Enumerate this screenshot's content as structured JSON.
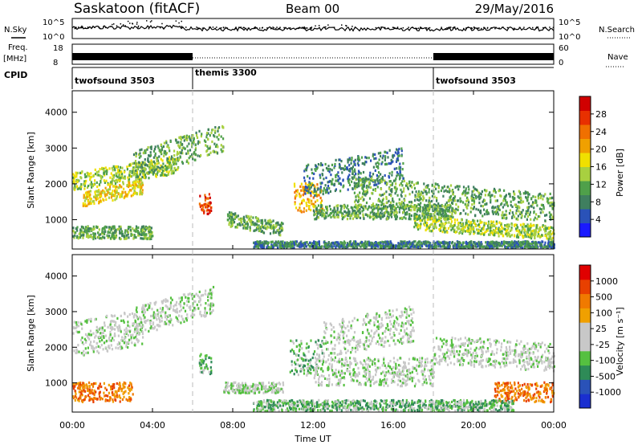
{
  "header": {
    "station": "Saskatoon (fitACF)",
    "beam": "Beam 00",
    "date": "29/May/2016"
  },
  "panels": {
    "nsky": {
      "label": "N.Sky",
      "ticks": [
        "10^5",
        "10^0"
      ],
      "right_label": "N.Search",
      "right_ticks": [
        "10^5",
        "10^0"
      ]
    },
    "freq": {
      "label_top": "Freq.",
      "label_unit": "[MHz]",
      "ticks": [
        "18",
        "8"
      ],
      "right_label": "Nave",
      "right_ticks": [
        "60",
        "0"
      ]
    },
    "cpid": {
      "label": "CPID",
      "modes": [
        {
          "name": "twofsound 3503",
          "start": 0,
          "end": 6
        },
        {
          "name": "themis 3300",
          "start": 6,
          "end": 18
        },
        {
          "name": "twofsound 3503",
          "start": 18,
          "end": 24
        }
      ]
    }
  },
  "x_axis": {
    "title": "Time UT",
    "ticks": [
      "00:00",
      "04:00",
      "08:00",
      "12:00",
      "16:00",
      "20:00",
      "00:00"
    ]
  },
  "colorbars": {
    "power": {
      "label": "Power [dB]",
      "ticks": [
        "28",
        "24",
        "20",
        "16",
        "12",
        "8",
        "4"
      ],
      "colors": [
        "#1a1aff",
        "#2a52b8",
        "#3f7f5f",
        "#4fa04a",
        "#a8d040",
        "#f0e000",
        "#f0a000",
        "#f07000",
        "#e83000",
        "#d00000"
      ]
    },
    "velocity": {
      "label": "Velocity [m s⁻¹]",
      "ticks": [
        "1000",
        "500",
        "100",
        "25",
        "-25",
        "-100",
        "-500",
        "-1000"
      ],
      "colors": [
        "#1a2fd0",
        "#2a52b8",
        "#2e8b57",
        "#55c040",
        "#c8c8c8",
        "#c8c8c8",
        "#f0a000",
        "#f07a00",
        "#e84000",
        "#e00000"
      ]
    }
  },
  "chart_data": [
    {
      "type": "heatmap",
      "title": "Power",
      "xlabel": "Time UT",
      "ylabel": "Slant Range [km]",
      "xlim": [
        0,
        24
      ],
      "ylim": [
        180,
        4600
      ],
      "y_ticks": [
        1000,
        2000,
        3000,
        4000
      ],
      "colorbar": "power",
      "regions": [
        {
          "t0": 0.0,
          "t1": 5.3,
          "r0": 1800,
          "r1": 2300,
          "level": 4,
          "slope": 90
        },
        {
          "t0": 0.5,
          "t1": 3.5,
          "r0": 1350,
          "r1": 1750,
          "level": 5,
          "slope": 120
        },
        {
          "t0": 0.0,
          "t1": 4.0,
          "r0": 450,
          "r1": 800,
          "level": 3,
          "slope": 0
        },
        {
          "t0": 3.0,
          "t1": 7.5,
          "r0": 2100,
          "r1": 2900,
          "level": 3,
          "slope": 170
        },
        {
          "t0": 6.3,
          "t1": 6.9,
          "r0": 1150,
          "r1": 1700,
          "level": 8,
          "slope": 0
        },
        {
          "t0": 7.7,
          "t1": 10.5,
          "r0": 800,
          "r1": 1200,
          "level": 3,
          "slope": -100
        },
        {
          "t0": 11.0,
          "t1": 12.5,
          "r0": 1200,
          "r1": 2000,
          "level": 6,
          "slope": 0
        },
        {
          "t0": 11.5,
          "t1": 16.5,
          "r0": 1600,
          "r1": 2500,
          "level": 2,
          "slope": 100
        },
        {
          "t0": 12.0,
          "t1": 19.0,
          "r0": 1000,
          "r1": 1400,
          "level": 3,
          "slope": 0
        },
        {
          "t0": 14.0,
          "t1": 24.0,
          "r0": 1400,
          "r1": 2200,
          "level": 3,
          "slope": -50
        },
        {
          "t0": 17.0,
          "t1": 24.0,
          "r0": 700,
          "r1": 1100,
          "level": 4,
          "slope": -40
        },
        {
          "t0": 9.0,
          "t1": 24.0,
          "r0": 200,
          "r1": 380,
          "level": 2,
          "slope": 0
        }
      ]
    },
    {
      "type": "heatmap",
      "title": "Velocity",
      "xlabel": "Time UT",
      "ylabel": "Slant Range [km]",
      "xlim": [
        0,
        24
      ],
      "ylim": [
        180,
        4600
      ],
      "y_ticks": [
        1000,
        2000,
        3000,
        4000
      ],
      "colorbar": "velocity",
      "regions": [
        {
          "t0": 0.0,
          "t1": 3.5,
          "r0": 1700,
          "r1": 2700,
          "level": 4,
          "slope": 100
        },
        {
          "t0": 3.0,
          "t1": 7.0,
          "r0": 2300,
          "r1": 3100,
          "level": 4,
          "slope": 150
        },
        {
          "t0": 0.0,
          "t1": 3.0,
          "r0": 450,
          "r1": 1000,
          "level": 7,
          "slope": 0
        },
        {
          "t0": 6.3,
          "t1": 6.9,
          "r0": 1200,
          "r1": 1800,
          "level": 3,
          "slope": 0
        },
        {
          "t0": 7.5,
          "t1": 10.5,
          "r0": 700,
          "r1": 1000,
          "level": 4,
          "slope": 0
        },
        {
          "t0": 10.8,
          "t1": 12.5,
          "r0": 1200,
          "r1": 2200,
          "level": 3,
          "slope": 0
        },
        {
          "t0": 12.0,
          "t1": 18.0,
          "r0": 900,
          "r1": 1700,
          "level": 4,
          "slope": 0
        },
        {
          "t0": 12.5,
          "t1": 17.0,
          "r0": 1700,
          "r1": 2700,
          "level": 4,
          "slope": 100
        },
        {
          "t0": 18.0,
          "t1": 24.0,
          "r0": 1500,
          "r1": 2300,
          "level": 4,
          "slope": -30
        },
        {
          "t0": 21.0,
          "t1": 24.0,
          "r0": 450,
          "r1": 1000,
          "level": 7,
          "slope": 0
        },
        {
          "t0": 9.0,
          "t1": 22.0,
          "r0": 200,
          "r1": 500,
          "level": 3,
          "slope": 0
        }
      ]
    }
  ]
}
